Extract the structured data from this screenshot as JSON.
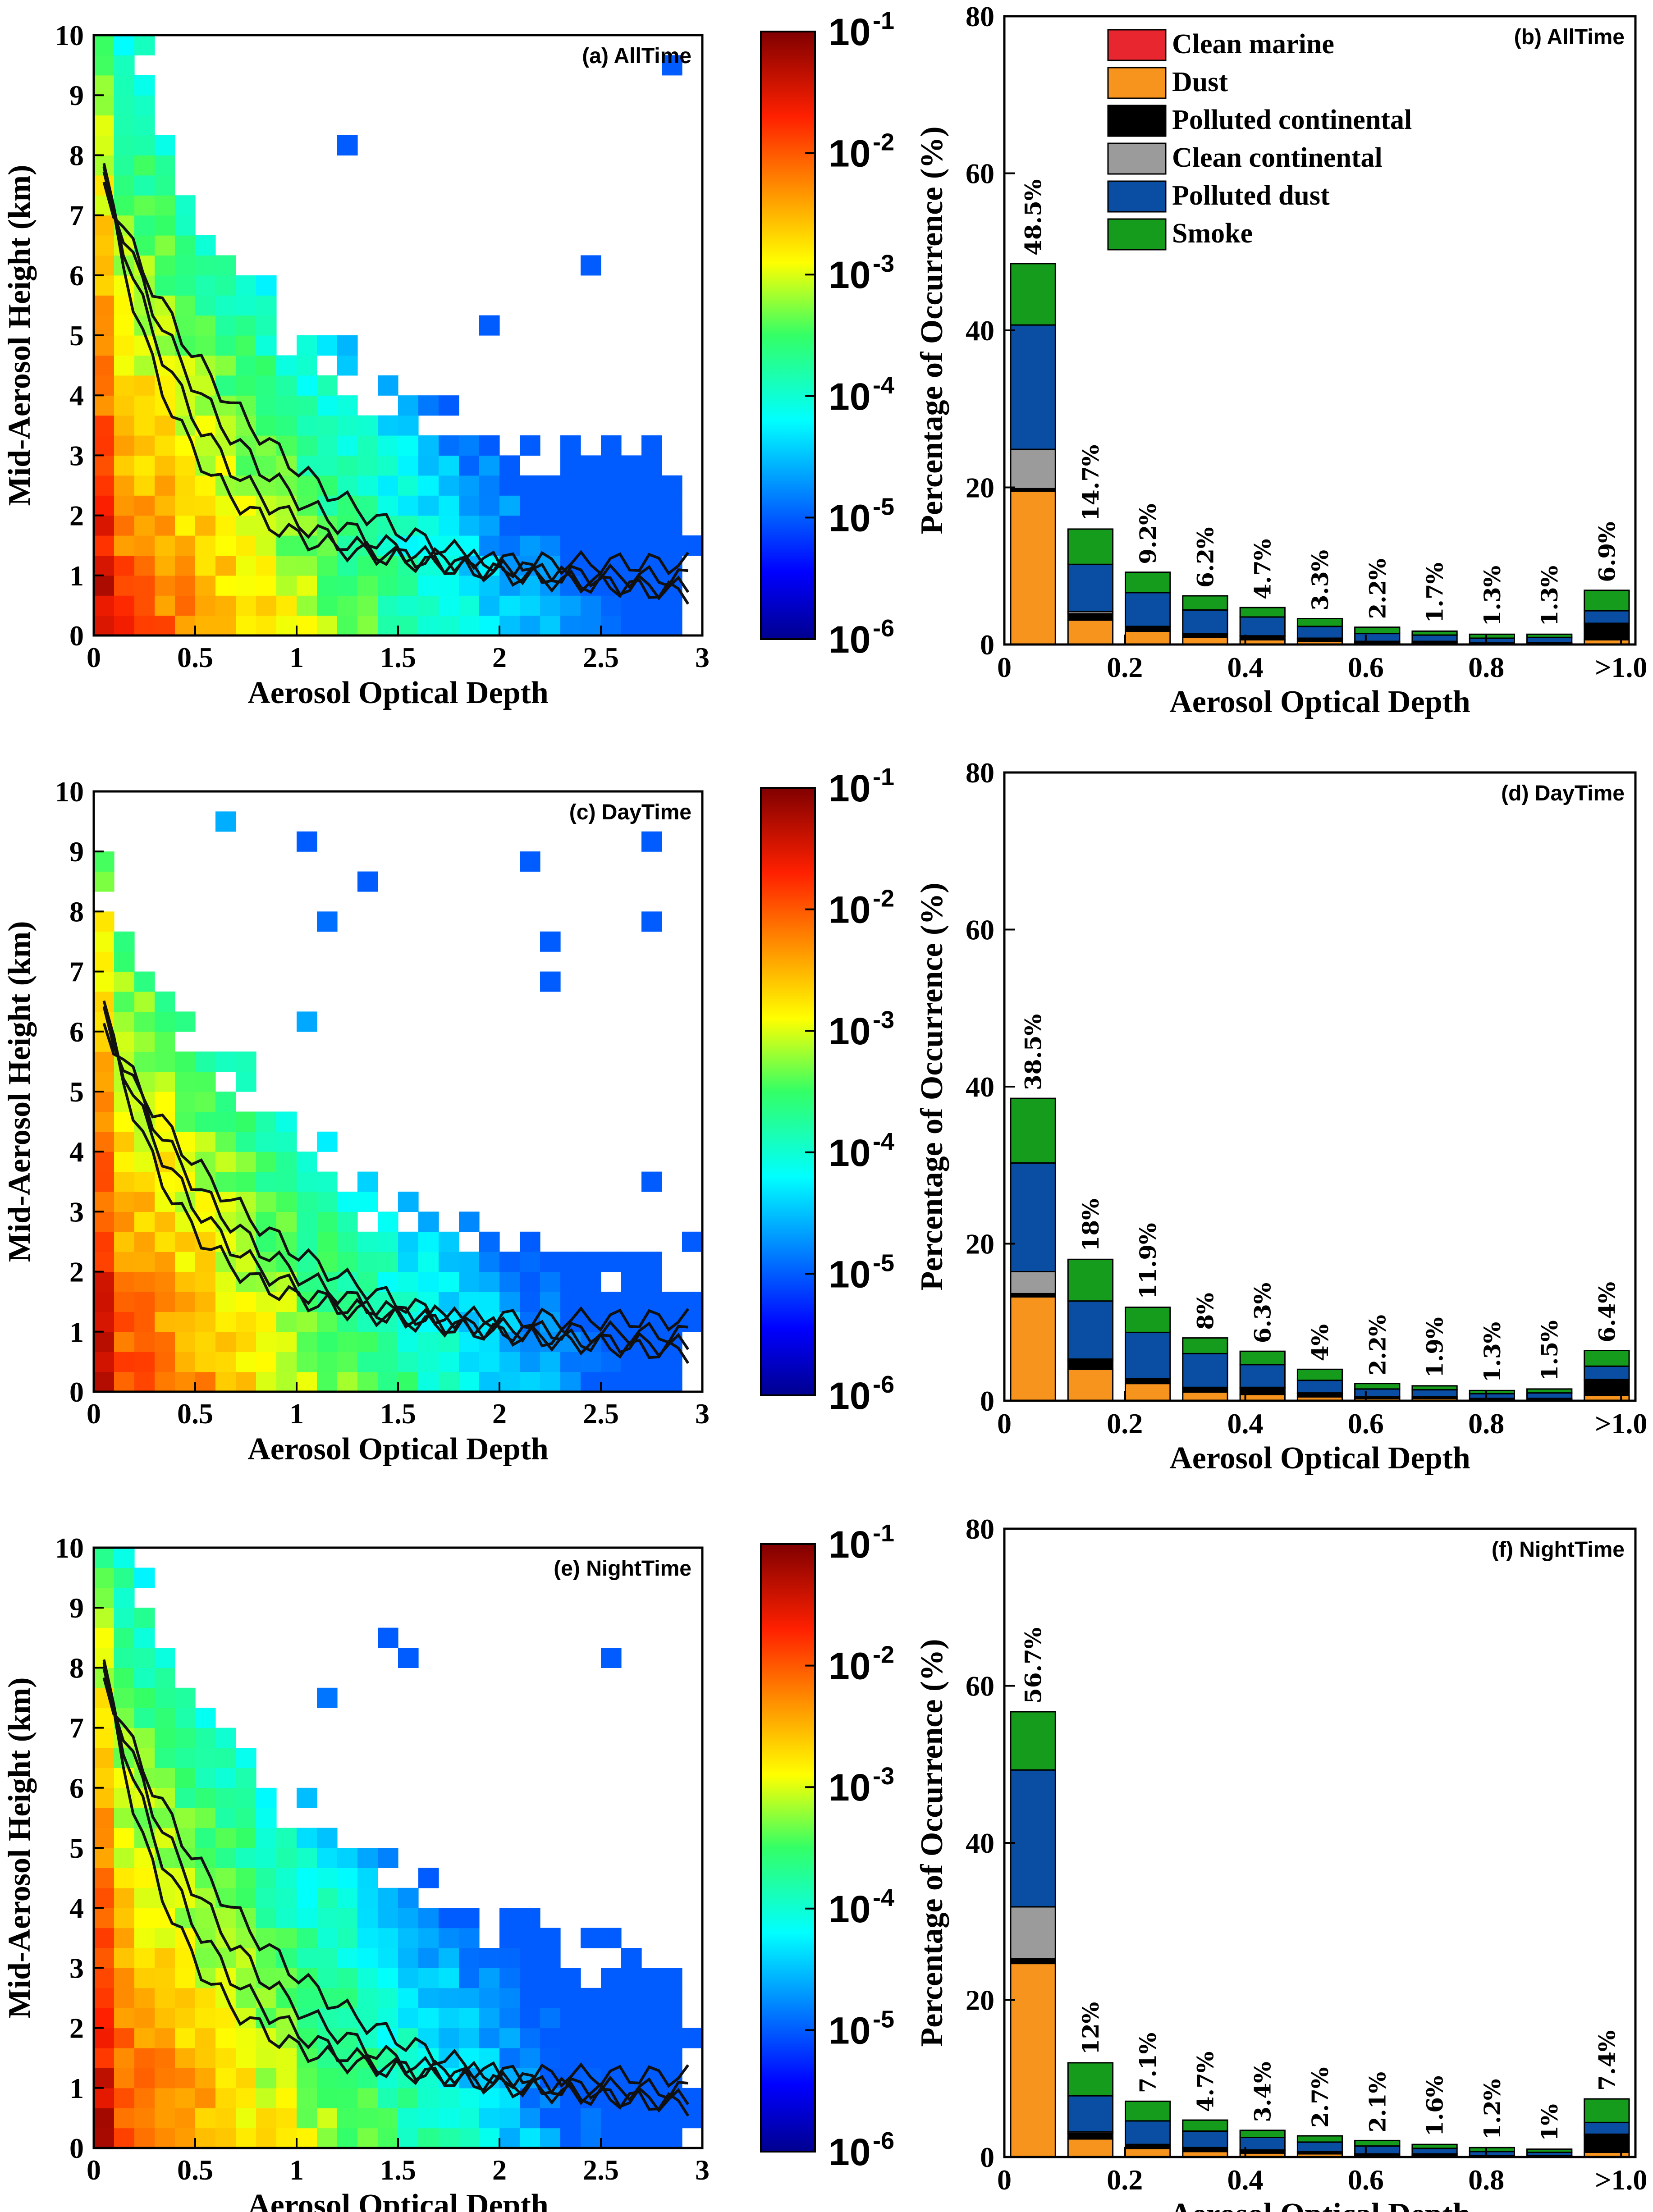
{
  "colors": {
    "clean_marine": "#e8262f",
    "dust": "#f7941d",
    "polluted_continental": "#000000",
    "clean_continental": "#9b9b9b",
    "polluted_dust": "#0a4ea3",
    "smoke": "#169c1c"
  },
  "chart_data": [
    {
      "id": "a",
      "type": "heatmap",
      "panel_label": "(a) AllTime",
      "xlabel": "Aerosol Optical Depth",
      "ylabel": "Mid-Aerosol Height (km)",
      "xlim": [
        0,
        3
      ],
      "ylim": [
        0,
        10
      ],
      "xticks": [
        "0",
        "0.5",
        "1",
        "1.5",
        "2",
        "2.5",
        "3"
      ],
      "yticks": [
        "0",
        "1",
        "2",
        "3",
        "4",
        "5",
        "6",
        "7",
        "8",
        "9",
        "10"
      ],
      "colorbar": {
        "scale": "log",
        "range": [
          1e-06,
          0.1
        ],
        "ticks": [
          "-1",
          "-2",
          "-3",
          "-4",
          "-5",
          "-6"
        ],
        "base": "10"
      },
      "contour_levels": [
        0.01,
        0.003,
        0.001,
        0.0003
      ]
    },
    {
      "id": "b",
      "type": "bar",
      "stacked": true,
      "panel_label": "(b) AllTime",
      "xlabel": "Aerosol Optical Depth",
      "ylabel": "Percentage of Occurrence (%)",
      "ylim": [
        0,
        80
      ],
      "yticks": [
        "0",
        "20",
        "40",
        "60",
        "80"
      ],
      "xticks": [
        "0",
        "0.2",
        "0.4",
        "0.6",
        "0.8",
        ">1.0"
      ],
      "legend_location": "top",
      "legend": [
        "Clean marine",
        "Dust",
        "Polluted continental",
        "Clean continental",
        "Polluted dust",
        "Smoke"
      ],
      "totals": [
        48.5,
        14.7,
        9.2,
        6.2,
        4.7,
        3.3,
        2.2,
        1.7,
        1.3,
        1.3,
        6.9
      ],
      "total_labels": [
        "48.5%",
        "14.7%",
        "9.2%",
        "6.2%",
        "4.7%",
        "3.3%",
        "2.2%",
        "1.7%",
        "1.3%",
        "1.3%",
        "6.9%"
      ],
      "series": [
        {
          "name": "Clean marine",
          "values": [
            0.1,
            0,
            0,
            0,
            0,
            0,
            0,
            0,
            0,
            0,
            0
          ]
        },
        {
          "name": "Dust",
          "values": [
            19.5,
            3.1,
            1.7,
            0.9,
            0.6,
            0.4,
            0.2,
            0.2,
            0.1,
            0.1,
            0.6
          ]
        },
        {
          "name": "Polluted continental",
          "values": [
            0.3,
            0.8,
            0.5,
            0.4,
            0.4,
            0.3,
            0.2,
            0.2,
            0.1,
            0.1,
            2.0
          ]
        },
        {
          "name": "Clean continental",
          "values": [
            5.0,
            0.3,
            0.1,
            0.1,
            0.1,
            0.1,
            0,
            0,
            0,
            0,
            0.1
          ]
        },
        {
          "name": "Polluted dust",
          "values": [
            15.8,
            6.0,
            4.3,
            3.0,
            2.4,
            1.5,
            1.0,
            0.8,
            0.6,
            0.7,
            1.6
          ]
        },
        {
          "name": "Smoke",
          "values": [
            7.8,
            4.5,
            2.6,
            1.8,
            1.2,
            1.0,
            0.8,
            0.5,
            0.5,
            0.4,
            2.6
          ]
        }
      ]
    },
    {
      "id": "c",
      "type": "heatmap",
      "panel_label": "(c) DayTime",
      "xlabel": "Aerosol Optical Depth",
      "ylabel": "Mid-Aerosol Height (km)",
      "xlim": [
        0,
        3
      ],
      "ylim": [
        0,
        10
      ],
      "xticks": [
        "0",
        "0.5",
        "1",
        "1.5",
        "2",
        "2.5",
        "3"
      ],
      "yticks": [
        "0",
        "1",
        "2",
        "3",
        "4",
        "5",
        "6",
        "7",
        "8",
        "9",
        "10"
      ],
      "colorbar": {
        "scale": "log",
        "range": [
          1e-06,
          0.1
        ],
        "ticks": [
          "-1",
          "-2",
          "-3",
          "-4",
          "-5",
          "-6"
        ],
        "base": "10"
      },
      "contour_levels": [
        0.01,
        0.003,
        0.001,
        0.0003
      ]
    },
    {
      "id": "d",
      "type": "bar",
      "stacked": true,
      "panel_label": "(d) DayTime",
      "xlabel": "Aerosol Optical Depth",
      "ylabel": "Percentage of Occurrence (%)",
      "ylim": [
        0,
        80
      ],
      "yticks": [
        "0",
        "20",
        "40",
        "60",
        "80"
      ],
      "xticks": [
        "0",
        "0.2",
        "0.4",
        "0.6",
        "0.8",
        ">1.0"
      ],
      "totals": [
        38.5,
        18,
        11.9,
        8,
        6.3,
        4,
        2.2,
        1.9,
        1.3,
        1.5,
        6.4
      ],
      "total_labels": [
        "38.5%",
        "18%",
        "11.9%",
        "8%",
        "6.3%",
        "4%",
        "2.2%",
        "1.9%",
        "1.3%",
        "1.5%",
        "6.4%"
      ],
      "series": [
        {
          "name": "Clean marine",
          "values": [
            0.1,
            0,
            0,
            0,
            0,
            0,
            0,
            0,
            0,
            0,
            0
          ]
        },
        {
          "name": "Dust",
          "values": [
            13.2,
            4.0,
            2.2,
            1.1,
            0.8,
            0.5,
            0.3,
            0.3,
            0.2,
            0.2,
            0.7
          ]
        },
        {
          "name": "Polluted continental",
          "values": [
            0.4,
            1.1,
            0.5,
            0.5,
            0.8,
            0.4,
            0.2,
            0.2,
            0.1,
            0.1,
            1.9
          ]
        },
        {
          "name": "Clean continental",
          "values": [
            2.8,
            0.2,
            0.1,
            0.1,
            0.1,
            0.1,
            0,
            0,
            0,
            0,
            0.1
          ]
        },
        {
          "name": "Polluted dust",
          "values": [
            13.8,
            7.4,
            5.9,
            4.3,
            2.9,
            1.6,
            1.0,
            0.9,
            0.6,
            0.7,
            1.7
          ]
        },
        {
          "name": "Smoke",
          "values": [
            8.2,
            5.3,
            3.2,
            2.0,
            1.7,
            1.4,
            0.7,
            0.5,
            0.4,
            0.5,
            2.0
          ]
        }
      ]
    },
    {
      "id": "e",
      "type": "heatmap",
      "panel_label": "(e) NightTime",
      "xlabel": "Aerosol Optical Depth",
      "ylabel": "Mid-Aerosol Height (km)",
      "xlim": [
        0,
        3
      ],
      "ylim": [
        0,
        10
      ],
      "xticks": [
        "0",
        "0.5",
        "1",
        "1.5",
        "2",
        "2.5",
        "3"
      ],
      "yticks": [
        "0",
        "1",
        "2",
        "3",
        "4",
        "5",
        "6",
        "7",
        "8",
        "9",
        "10"
      ],
      "colorbar": {
        "scale": "log",
        "range": [
          1e-06,
          0.1
        ],
        "ticks": [
          "-1",
          "-2",
          "-3",
          "-4",
          "-5",
          "-6"
        ],
        "base": "10"
      },
      "contour_levels": [
        0.01,
        0.003,
        0.001,
        0.0003
      ]
    },
    {
      "id": "f",
      "type": "bar",
      "stacked": true,
      "panel_label": "(f) NightTime",
      "xlabel": "Aerosol Optical Depth",
      "ylabel": "Percentage of Occurrence (%)",
      "ylim": [
        0,
        80
      ],
      "yticks": [
        "0",
        "20",
        "40",
        "60",
        "80"
      ],
      "xticks": [
        "0",
        "0.2",
        "0.4",
        "0.6",
        "0.8",
        ">1.0"
      ],
      "totals": [
        56.7,
        12,
        7.1,
        4.7,
        3.4,
        2.7,
        2.1,
        1.6,
        1.2,
        1,
        7.4
      ],
      "total_labels": [
        "56.7%",
        "12%",
        "7.1%",
        "4.7%",
        "3.4%",
        "2.7%",
        "2.1%",
        "1.6%",
        "1.2%",
        "1%",
        "7.4%"
      ],
      "series": [
        {
          "name": "Clean marine",
          "values": [
            0.1,
            0,
            0,
            0,
            0,
            0,
            0,
            0,
            0,
            0,
            0
          ]
        },
        {
          "name": "Dust",
          "values": [
            24.6,
            2.3,
            1.1,
            0.7,
            0.5,
            0.4,
            0.2,
            0.2,
            0.1,
            0.1,
            0.6
          ]
        },
        {
          "name": "Polluted continental",
          "values": [
            0.6,
            0.7,
            0.4,
            0.4,
            0.3,
            0.2,
            0.2,
            0.2,
            0.1,
            0.1,
            2.2
          ]
        },
        {
          "name": "Clean continental",
          "values": [
            6.6,
            0.2,
            0.1,
            0.1,
            0.1,
            0.1,
            0,
            0,
            0,
            0,
            0.1
          ]
        },
        {
          "name": "Polluted dust",
          "values": [
            17.4,
            4.6,
            3.0,
            2.1,
            1.6,
            1.2,
            1.0,
            0.7,
            0.5,
            0.4,
            1.5
          ]
        },
        {
          "name": "Smoke",
          "values": [
            7.4,
            4.2,
            2.5,
            1.4,
            0.9,
            0.8,
            0.7,
            0.5,
            0.5,
            0.4,
            3.0
          ]
        }
      ]
    }
  ]
}
